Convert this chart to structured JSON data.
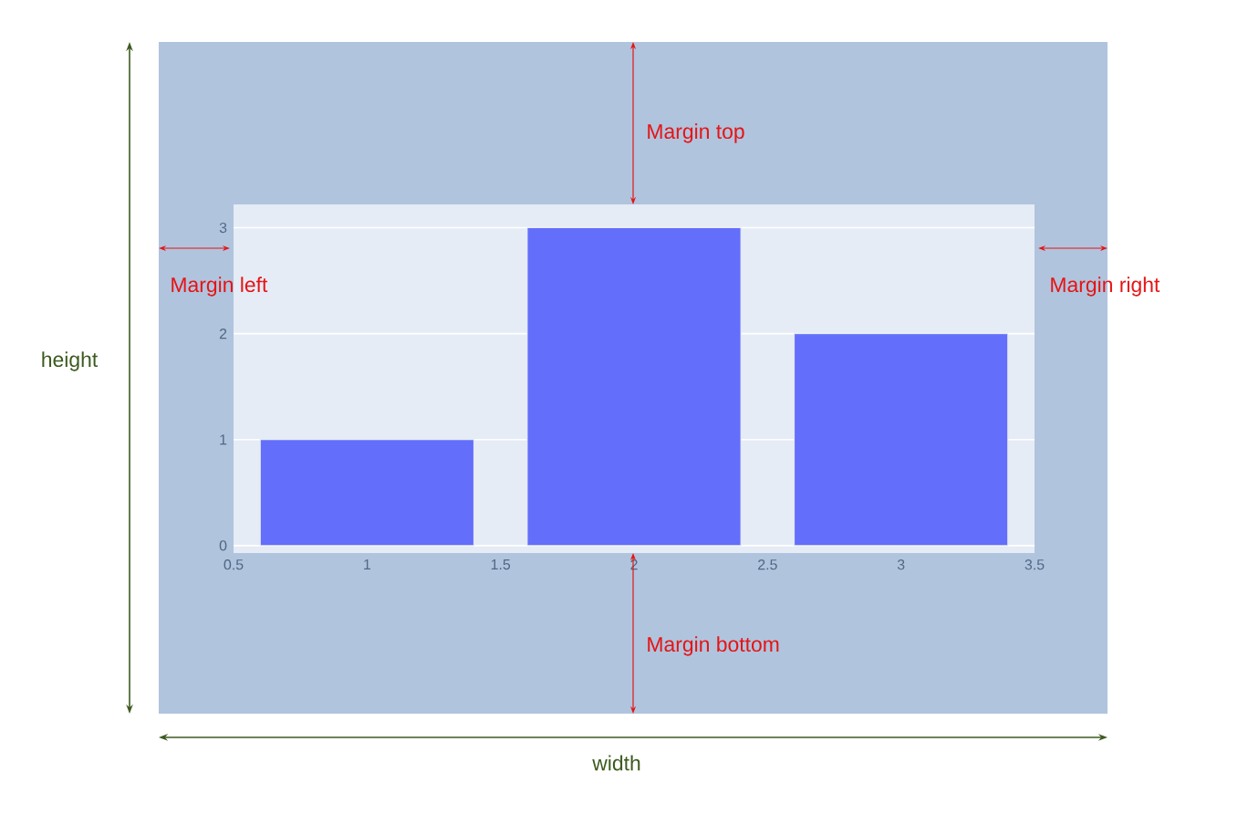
{
  "chart_data": {
    "type": "bar",
    "x": [
      1,
      2,
      3
    ],
    "values": [
      1,
      3,
      2
    ],
    "color": "#636efa",
    "xlim": [
      0.5,
      3.5
    ],
    "xticks": [
      0.5,
      1,
      1.5,
      2,
      2.5,
      3,
      3.5
    ],
    "ylim": [
      -0.07,
      3.22
    ],
    "yticks": [
      0,
      1,
      2,
      3
    ],
    "grid": "y",
    "annotations": [
      "Margin top",
      "Margin left",
      "Margin right",
      "Margin bottom",
      "height",
      "width"
    ]
  }
}
